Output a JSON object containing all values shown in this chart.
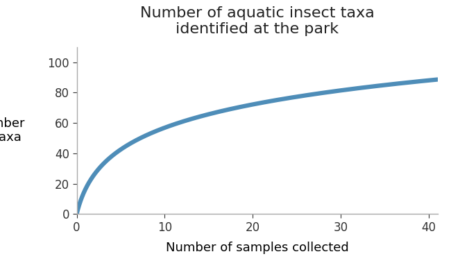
{
  "title": "Number of aquatic insect taxa\nidentified at the park",
  "xlabel": "Number of samples collected",
  "ylabel": "Number\nof taxa",
  "xlim": [
    0,
    41
  ],
  "ylim": [
    0,
    110
  ],
  "xticks": [
    0,
    10,
    20,
    30,
    40
  ],
  "yticks": [
    0,
    20,
    40,
    60,
    80,
    100
  ],
  "line_color": "#4e8db8",
  "line_width": 4.5,
  "background_color": "#ffffff",
  "title_fontsize": 16,
  "label_fontsize": 13,
  "tick_fontsize": 12,
  "curve_log_a": 23.7
}
